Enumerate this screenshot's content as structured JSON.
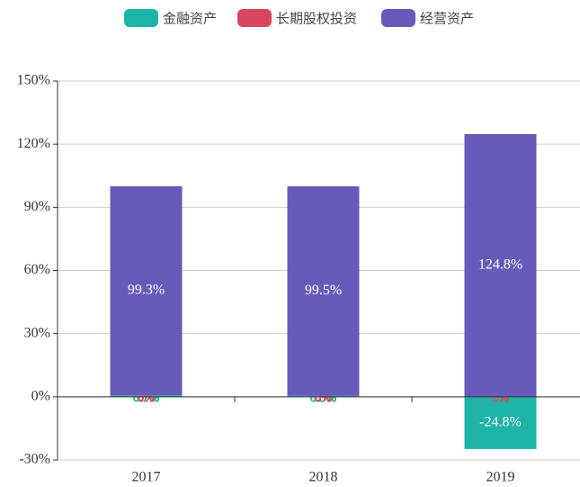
{
  "chart_data": {
    "type": "stacked-bar",
    "categories": [
      "2017",
      "2018",
      "2019"
    ],
    "series": [
      {
        "name": "金融资产",
        "color": "#1db3a8",
        "values": [
          0.7,
          0.5,
          -24.8
        ],
        "value_labels": [
          "0.7%",
          "0.5%",
          "-24.8%"
        ]
      },
      {
        "name": "长期股权投资",
        "color": "#d9475e",
        "values": [
          0,
          0,
          0
        ],
        "value_labels": [
          "0%",
          "0%",
          "0%"
        ]
      },
      {
        "name": "经营资产",
        "color": "#665bb9",
        "values": [
          99.3,
          99.5,
          124.8
        ],
        "value_labels": [
          "99.3%",
          "99.5%",
          "124.8%"
        ]
      }
    ],
    "ylim": [
      -30,
      150
    ],
    "yticks": [
      {
        "value": -30,
        "label": "-30%"
      },
      {
        "value": 0,
        "label": "0%"
      },
      {
        "value": 30,
        "label": "30%"
      },
      {
        "value": 60,
        "label": "60%"
      },
      {
        "value": 90,
        "label": "90%"
      },
      {
        "value": 120,
        "label": "120%"
      },
      {
        "value": 150,
        "label": "150%"
      }
    ],
    "grid": true,
    "legend": "top"
  }
}
